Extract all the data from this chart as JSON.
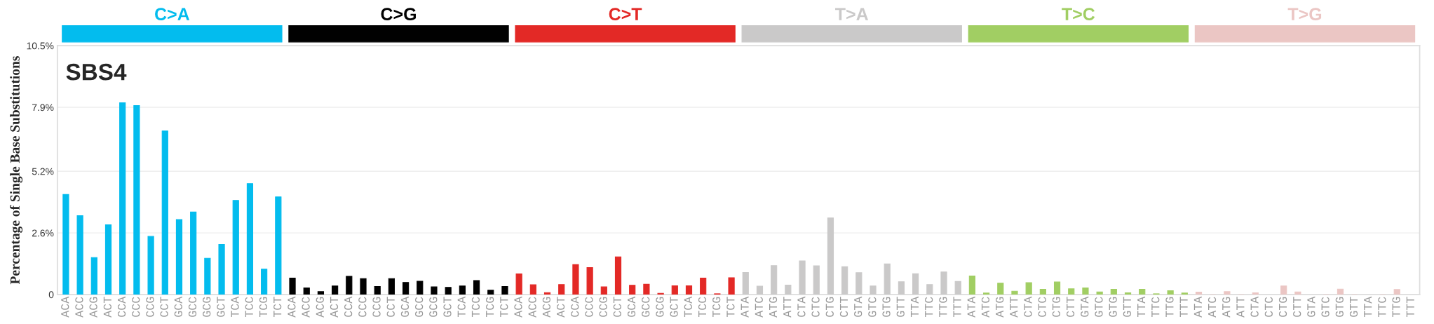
{
  "chart_data": {
    "type": "bar",
    "title": "SBS4",
    "ylabel": "Percentage of Single Base Substitutions",
    "categories": [
      "ACA",
      "ACC",
      "ACG",
      "ACT",
      "CCA",
      "CCC",
      "CCG",
      "CCT",
      "GCA",
      "GCC",
      "GCG",
      "GCT",
      "TCA",
      "TCC",
      "TCG",
      "TCT",
      "ACA",
      "ACC",
      "ACG",
      "ACT",
      "CCA",
      "CCC",
      "CCG",
      "CCT",
      "GCA",
      "GCC",
      "GCG",
      "GCT",
      "TCA",
      "TCC",
      "TCG",
      "TCT",
      "ACA",
      "ACC",
      "ACG",
      "ACT",
      "CCA",
      "CCC",
      "CCG",
      "CCT",
      "GCA",
      "GCC",
      "GCG",
      "GCT",
      "TCA",
      "TCC",
      "TCG",
      "TCT",
      "ATA",
      "ATC",
      "ATG",
      "ATT",
      "CTA",
      "CTC",
      "CTG",
      "CTT",
      "GTA",
      "GTC",
      "GTG",
      "GTT",
      "TTA",
      "TTC",
      "TTG",
      "TTT",
      "ATA",
      "ATC",
      "ATG",
      "ATT",
      "CTA",
      "CTC",
      "CTG",
      "CTT",
      "GTA",
      "GTC",
      "GTG",
      "GTT",
      "TTA",
      "TTC",
      "TTG",
      "TTT",
      "ATA",
      "ATC",
      "ATG",
      "ATT",
      "CTA",
      "CTC",
      "CTG",
      "CTT",
      "GTA",
      "GTC",
      "GTG",
      "GTT",
      "TTA",
      "TTC",
      "TTG",
      "TTT"
    ],
    "series": [
      {
        "name": "C>A",
        "color": "#03bcee",
        "values": [
          4.22,
          3.33,
          1.56,
          2.94,
          8.09,
          7.97,
          2.45,
          6.9,
          3.16,
          3.48,
          1.53,
          2.11,
          3.97,
          4.68,
          1.07,
          4.12,
          null,
          null,
          null,
          null,
          null,
          null,
          null,
          null,
          null,
          null,
          null,
          null,
          null,
          null,
          null,
          null,
          null,
          null,
          null,
          null,
          null,
          null,
          null,
          null,
          null,
          null,
          null,
          null,
          null,
          null,
          null,
          null,
          null,
          null,
          null,
          null,
          null,
          null,
          null,
          null,
          null,
          null,
          null,
          null,
          null,
          null,
          null,
          null,
          null,
          null,
          null,
          null,
          null,
          null,
          null,
          null,
          null,
          null,
          null,
          null,
          null,
          null,
          null,
          null,
          null,
          null,
          null,
          null,
          null,
          null,
          null,
          null,
          null,
          null,
          null,
          null,
          null,
          null,
          null,
          null
        ]
      },
      {
        "name": "C>G",
        "color": "#010101",
        "values": [
          null,
          null,
          null,
          null,
          null,
          null,
          null,
          null,
          null,
          null,
          null,
          null,
          null,
          null,
          null,
          null,
          0.69,
          0.28,
          0.12,
          0.36,
          0.77,
          0.67,
          0.34,
          0.67,
          0.51,
          0.56,
          0.32,
          0.3,
          0.36,
          0.59,
          0.18,
          0.34,
          null,
          null,
          null,
          null,
          null,
          null,
          null,
          null,
          null,
          null,
          null,
          null,
          null,
          null,
          null,
          null,
          null,
          null,
          null,
          null,
          null,
          null,
          null,
          null,
          null,
          null,
          null,
          null,
          null,
          null,
          null,
          null,
          null,
          null,
          null,
          null,
          null,
          null,
          null,
          null,
          null,
          null,
          null,
          null,
          null,
          null,
          null,
          null,
          null,
          null,
          null,
          null,
          null,
          null,
          null,
          null,
          null,
          null,
          null,
          null,
          null,
          null,
          null,
          null
        ]
      },
      {
        "name": "C>T",
        "color": "#e32926",
        "values": [
          null,
          null,
          null,
          null,
          null,
          null,
          null,
          null,
          null,
          null,
          null,
          null,
          null,
          null,
          null,
          null,
          null,
          null,
          null,
          null,
          null,
          null,
          null,
          null,
          null,
          null,
          null,
          null,
          null,
          null,
          null,
          null,
          0.87,
          0.41,
          0.08,
          0.42,
          1.26,
          1.14,
          0.32,
          1.59,
          0.39,
          0.43,
          0.05,
          0.37,
          0.37,
          0.69,
          0.03,
          0.71,
          null,
          null,
          null,
          null,
          null,
          null,
          null,
          null,
          null,
          null,
          null,
          null,
          null,
          null,
          null,
          null,
          null,
          null,
          null,
          null,
          null,
          null,
          null,
          null,
          null,
          null,
          null,
          null,
          null,
          null,
          null,
          null,
          null,
          null,
          null,
          null,
          null,
          null,
          null,
          null,
          null,
          null,
          null,
          null,
          null,
          null,
          null,
          null
        ]
      },
      {
        "name": "T>A",
        "color": "#cac9c9",
        "values": [
          null,
          null,
          null,
          null,
          null,
          null,
          null,
          null,
          null,
          null,
          null,
          null,
          null,
          null,
          null,
          null,
          null,
          null,
          null,
          null,
          null,
          null,
          null,
          null,
          null,
          null,
          null,
          null,
          null,
          null,
          null,
          null,
          null,
          null,
          null,
          null,
          null,
          null,
          null,
          null,
          null,
          null,
          null,
          null,
          null,
          null,
          null,
          null,
          0.93,
          0.35,
          1.22,
          0.4,
          1.42,
          1.21,
          3.23,
          1.17,
          0.92,
          0.36,
          1.29,
          0.54,
          0.88,
          0.42,
          0.95,
          0.55,
          null,
          null,
          null,
          null,
          null,
          null,
          null,
          null,
          null,
          null,
          null,
          null,
          null,
          null,
          null,
          null,
          null,
          null,
          null,
          null,
          null,
          null,
          null,
          null,
          null,
          null,
          null,
          null,
          null,
          null,
          null,
          null
        ]
      },
      {
        "name": "T>C",
        "color": "#a1ce63",
        "values": [
          null,
          null,
          null,
          null,
          null,
          null,
          null,
          null,
          null,
          null,
          null,
          null,
          null,
          null,
          null,
          null,
          null,
          null,
          null,
          null,
          null,
          null,
          null,
          null,
          null,
          null,
          null,
          null,
          null,
          null,
          null,
          null,
          null,
          null,
          null,
          null,
          null,
          null,
          null,
          null,
          null,
          null,
          null,
          null,
          null,
          null,
          null,
          null,
          null,
          null,
          null,
          null,
          null,
          null,
          null,
          null,
          null,
          null,
          null,
          null,
          null,
          null,
          null,
          null,
          0.78,
          0.06,
          0.48,
          0.14,
          0.5,
          0.22,
          0.53,
          0.24,
          0.28,
          0.11,
          0.22,
          0.07,
          0.22,
          0.03,
          0.16,
          0.06,
          null,
          null,
          null,
          null,
          null,
          null,
          null,
          null,
          null,
          null,
          null,
          null,
          null,
          null,
          null,
          null
        ]
      },
      {
        "name": "T>G",
        "color": "#ebc6c4",
        "values": [
          null,
          null,
          null,
          null,
          null,
          null,
          null,
          null,
          null,
          null,
          null,
          null,
          null,
          null,
          null,
          null,
          null,
          null,
          null,
          null,
          null,
          null,
          null,
          null,
          null,
          null,
          null,
          null,
          null,
          null,
          null,
          null,
          null,
          null,
          null,
          null,
          null,
          null,
          null,
          null,
          null,
          null,
          null,
          null,
          null,
          null,
          null,
          null,
          null,
          null,
          null,
          null,
          null,
          null,
          null,
          null,
          null,
          null,
          null,
          null,
          null,
          null,
          null,
          null,
          null,
          null,
          null,
          null,
          null,
          null,
          null,
          null,
          null,
          null,
          null,
          null,
          null,
          null,
          null,
          null,
          0.1,
          0.0,
          0.12,
          0.0,
          0.07,
          null,
          0.36,
          0.11,
          null,
          0.0,
          0.23,
          0.0,
          null,
          0.0,
          0.21,
          null
        ]
      }
    ],
    "ylim": [
      0,
      10.5
    ],
    "yticks": [
      0,
      {
        "value": 2.6,
        "label": "2.6%"
      },
      {
        "value": 5.2,
        "label": "5.2%"
      },
      {
        "value": 7.9,
        "label": "7.9%"
      },
      {
        "value": 10.5,
        "label": "10.5%"
      }
    ],
    "grid": "y",
    "legend": "top"
  }
}
